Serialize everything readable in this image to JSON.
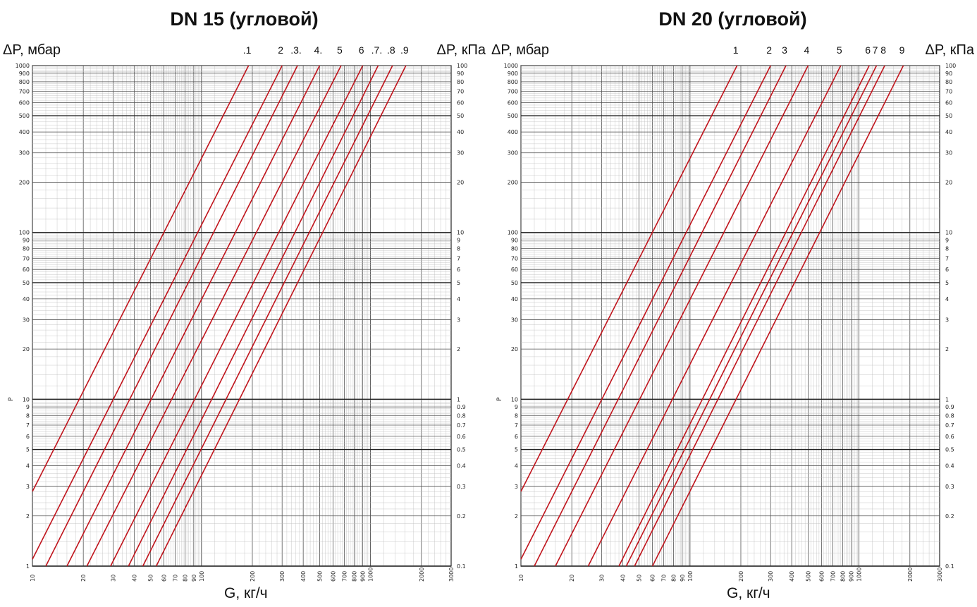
{
  "chart_data": [
    {
      "type": "line",
      "title": "DN 15 (угловой)",
      "ylabel_left": "ΔP, мбар",
      "ylabel_right": "ΔP, кПа",
      "ylabel_axis": "P",
      "xlabel": "G, кг/ч",
      "xscale": "log",
      "yscale": "log",
      "xlim": [
        10,
        3000
      ],
      "ylim": [
        1,
        1000
      ],
      "x_ticks": [
        "10",
        "20",
        "30",
        "40",
        "50",
        "60",
        "70",
        "80",
        "90",
        "100",
        "200",
        "300",
        "400",
        "500",
        "600",
        "700",
        "800",
        "900",
        "1000",
        "2000",
        "3000"
      ],
      "y_ticks_left": [
        "1",
        "2",
        "3",
        "4",
        "5",
        "6",
        "7",
        "8",
        "9",
        "10",
        "20",
        "30",
        "40",
        "50",
        "60",
        "70",
        "80",
        "90",
        "100",
        "200",
        "300",
        "400",
        "500",
        "600",
        "700",
        "800",
        "900",
        "1000"
      ],
      "y_ticks_right": [
        "0.1",
        "0.2",
        "0.3",
        "0.4",
        "0.5",
        "0.6",
        "0.7",
        "0.8",
        "0.9",
        "1",
        "2",
        "3",
        "4",
        "5",
        "6",
        "7",
        "8",
        "9",
        "10",
        "20",
        "30",
        "40",
        "50",
        "60",
        "70",
        "80",
        "90",
        "100"
      ],
      "grid": true,
      "line_color": "#c0141c",
      "series": [
        {
          "name": "1",
          "points": [
            [
              10,
              2.8
            ],
            [
              190,
              1000
            ]
          ]
        },
        {
          "name": "2",
          "points": [
            [
              10,
              1.1
            ],
            [
              300,
              1000
            ]
          ]
        },
        {
          "name": "3",
          "points": [
            [
              12,
              1
            ],
            [
              370,
              1000
            ]
          ]
        },
        {
          "name": "4",
          "points": [
            [
              16,
              1
            ],
            [
              500,
              1000
            ]
          ]
        },
        {
          "name": "5",
          "points": [
            [
              21,
              1
            ],
            [
              670,
              1000
            ]
          ]
        },
        {
          "name": "6",
          "points": [
            [
              29,
              1
            ],
            [
              900,
              1000
            ]
          ]
        },
        {
          "name": "7",
          "points": [
            [
              37,
              1
            ],
            [
              1110,
              1000
            ]
          ]
        },
        {
          "name": "8",
          "points": [
            [
              45,
              1
            ],
            [
              1350,
              1000
            ]
          ]
        },
        {
          "name": "9",
          "points": [
            [
              54,
              1
            ],
            [
              1620,
              1000
            ]
          ]
        }
      ],
      "curve_labels": [
        ".1",
        "2",
        ".3.",
        "4.",
        "5",
        "6",
        ".7.",
        ".8",
        ".9"
      ]
    },
    {
      "type": "line",
      "title": "DN 20 (угловой)",
      "ylabel_left": "ΔP, мбар",
      "ylabel_right": "ΔP, кПа",
      "ylabel_axis": "P",
      "xlabel": "G, кг/ч",
      "xscale": "log",
      "yscale": "log",
      "xlim": [
        10,
        3000
      ],
      "ylim": [
        1,
        1000
      ],
      "x_ticks": [
        "10",
        "20",
        "30",
        "40",
        "50",
        "60",
        "70",
        "80",
        "90",
        "100",
        "200",
        "300",
        "400",
        "500",
        "600",
        "700",
        "800",
        "900",
        "1000",
        "2000",
        "3000"
      ],
      "y_ticks_left": [
        "1",
        "2",
        "3",
        "4",
        "5",
        "6",
        "7",
        "8",
        "9",
        "10",
        "20",
        "30",
        "40",
        "50",
        "60",
        "70",
        "80",
        "90",
        "100",
        "200",
        "300",
        "400",
        "500",
        "600",
        "700",
        "800",
        "900",
        "1000"
      ],
      "y_ticks_right": [
        "0.1",
        "0.2",
        "0.3",
        "0.4",
        "0.5",
        "0.6",
        "0.7",
        "0.8",
        "0.9",
        "1",
        "2",
        "3",
        "4",
        "5",
        "6",
        "7",
        "8",
        "9",
        "10",
        "20",
        "30",
        "40",
        "50",
        "60",
        "70",
        "80",
        "90",
        "100"
      ],
      "grid": true,
      "line_color": "#c0141c",
      "series": [
        {
          "name": "1",
          "points": [
            [
              10,
              2.8
            ],
            [
              190,
              1000
            ]
          ]
        },
        {
          "name": "2",
          "points": [
            [
              10,
              1.1
            ],
            [
              300,
              1000
            ]
          ]
        },
        {
          "name": "3",
          "points": [
            [
              12,
              1
            ],
            [
              370,
              1000
            ]
          ]
        },
        {
          "name": "4",
          "points": [
            [
              16,
              1
            ],
            [
              500,
              1000
            ]
          ]
        },
        {
          "name": "5",
          "points": [
            [
              25,
              1
            ],
            [
              780,
              1000
            ]
          ]
        },
        {
          "name": "6",
          "points": [
            [
              38,
              1
            ],
            [
              1150,
              1000
            ]
          ]
        },
        {
          "name": "7",
          "points": [
            [
              42,
              1
            ],
            [
              1270,
              1000
            ]
          ]
        },
        {
          "name": "8",
          "points": [
            [
              47,
              1
            ],
            [
              1420,
              1000
            ]
          ]
        },
        {
          "name": "9",
          "points": [
            [
              60,
              1
            ],
            [
              1830,
              1000
            ]
          ]
        }
      ],
      "curve_labels": [
        "1",
        "2",
        "3",
        "4",
        "5",
        "6",
        "7",
        "8",
        "9"
      ]
    }
  ]
}
